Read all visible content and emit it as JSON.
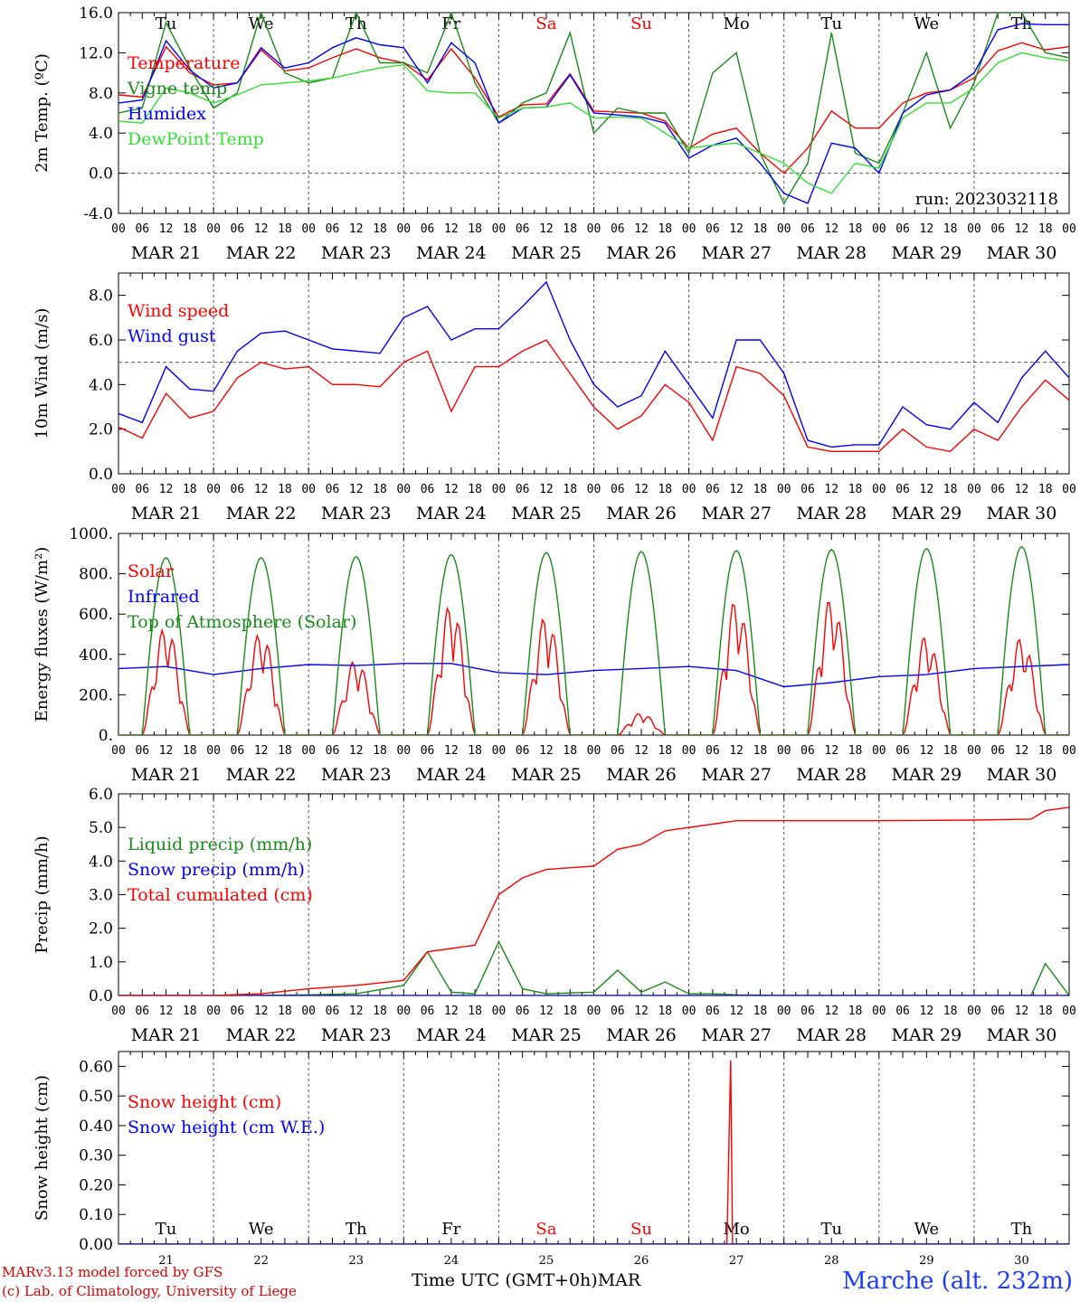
{
  "colors": {
    "red": "#ff0000",
    "green": "#1a8a1a",
    "blue": "#0000ff",
    "lightgreen": "#33dd33",
    "weekend": "#ff0000",
    "axis": "#000000"
  },
  "hour_ticks": [
    "00",
    "06",
    "12",
    "18"
  ],
  "date_labels": [
    "MAR 21",
    "MAR 22",
    "MAR 23",
    "MAR 24",
    "MAR 25",
    "MAR 26",
    "MAR 27",
    "MAR 28",
    "MAR 29",
    "MAR 30"
  ],
  "day_names": [
    "Tu",
    "We",
    "Th",
    "Fr",
    "Sa",
    "Su",
    "Mo",
    "Tu",
    "We",
    "Th"
  ],
  "weekend_days": [
    "Sa",
    "Su"
  ],
  "day_numbers": [
    "21",
    "22",
    "23",
    "24",
    "25",
    "26",
    "27",
    "28",
    "29",
    "30"
  ],
  "footer": {
    "credit_line1": "MARv3.13 model forced by GFS",
    "credit_line2": "(c) Lab. of Climatology, University of Liege",
    "time_label": "Time UTC (GMT+0h)",
    "month_label": "MAR",
    "station": "Marche (alt. 232m)"
  },
  "chart_data": [
    {
      "type": "line",
      "ylabel": "2m Temp. (ºC)",
      "ylim": [
        -4,
        16
      ],
      "yticks": [
        "-4.0",
        "0.0",
        "4.0",
        "8.0",
        "12.0",
        "16.0"
      ],
      "ytick_values": [
        -4,
        0,
        4,
        8,
        12,
        16
      ],
      "reference_line": 0,
      "show_day_names": true,
      "annotation": "run: 2023032118",
      "x_days": [
        0,
        0.25,
        0.5,
        0.75,
        1,
        1.25,
        1.5,
        1.75,
        2,
        2.25,
        2.5,
        2.75,
        3,
        3.25,
        3.5,
        3.75,
        4,
        4.25,
        4.5,
        4.75,
        5,
        5.25,
        5.5,
        5.75,
        6,
        6.25,
        6.5,
        6.75,
        7,
        7.25,
        7.5,
        7.75,
        8,
        8.25,
        8.5,
        8.75,
        9,
        9.25,
        9.5,
        9.75,
        10
      ],
      "series": [
        {
          "name": "Temperature",
          "color": "red",
          "values": [
            7.8,
            7.6,
            12.6,
            10.0,
            8.8,
            9.0,
            12.3,
            10.2,
            10.5,
            11.5,
            12.4,
            11.5,
            11.0,
            9.3,
            12.4,
            9.5,
            5.6,
            6.8,
            6.9,
            9.9,
            6.2,
            6.1,
            6.0,
            5.2,
            2.5,
            3.9,
            4.5,
            2.0,
            0.0,
            2.5,
            6.2,
            4.5,
            4.5,
            7.0,
            8.0,
            8.3,
            9.5,
            12.2,
            13.0,
            12.3,
            12.6
          ]
        },
        {
          "name": "Vigne temp",
          "color": "green",
          "values": [
            6.0,
            6.5,
            15.0,
            10.5,
            6.5,
            8.0,
            16.0,
            10.0,
            9.0,
            9.5,
            16.0,
            11.0,
            11.0,
            10.0,
            16.0,
            9.0,
            5.0,
            7.0,
            8.0,
            14.0,
            4.0,
            6.5,
            6.0,
            6.0,
            2.0,
            10.0,
            12.0,
            2.0,
            -3.0,
            1.0,
            14.0,
            2.0,
            1.0,
            6.0,
            12.0,
            4.5,
            9.0,
            16.0,
            16.0,
            12.0,
            11.5
          ]
        },
        {
          "name": "Humidex",
          "color": "blue",
          "values": [
            7.0,
            7.3,
            13.2,
            10.3,
            8.5,
            9.0,
            12.5,
            10.5,
            11.0,
            12.5,
            13.5,
            12.8,
            12.5,
            9.0,
            13.0,
            11.0,
            5.0,
            6.5,
            6.6,
            9.8,
            6.0,
            5.8,
            5.6,
            5.0,
            1.5,
            2.8,
            3.5,
            1.0,
            -2.0,
            -3.0,
            3.0,
            2.5,
            0.0,
            6.0,
            7.8,
            8.3,
            10.0,
            14.3,
            14.9,
            14.8,
            14.8
          ]
        },
        {
          "name": "DewPoint Temp",
          "color": "lightgreen",
          "values": [
            5.2,
            5.0,
            8.5,
            8.0,
            7.0,
            7.8,
            8.8,
            9.0,
            9.2,
            9.5,
            10.0,
            10.5,
            10.8,
            8.2,
            8.0,
            8.0,
            5.5,
            6.5,
            6.6,
            7.0,
            5.5,
            5.6,
            5.5,
            4.0,
            2.5,
            2.8,
            3.0,
            2.0,
            1.0,
            -1.0,
            -2.0,
            1.0,
            0.5,
            5.5,
            7.0,
            7.0,
            8.5,
            11.0,
            12.0,
            11.5,
            11.2
          ]
        }
      ]
    },
    {
      "type": "line",
      "ylabel": "10m Wind (m/s)",
      "ylim": [
        0,
        9
      ],
      "yticks": [
        "0.0",
        "2.0",
        "4.0",
        "6.0",
        "8.0"
      ],
      "ytick_values": [
        0,
        2,
        4,
        6,
        8
      ],
      "reference_line": 5,
      "x_days": [
        0,
        0.25,
        0.5,
        0.75,
        1,
        1.25,
        1.5,
        1.75,
        2,
        2.25,
        2.5,
        2.75,
        3,
        3.25,
        3.5,
        3.75,
        4,
        4.25,
        4.5,
        4.75,
        5,
        5.25,
        5.5,
        5.75,
        6,
        6.25,
        6.5,
        6.75,
        7,
        7.25,
        7.5,
        7.75,
        8,
        8.25,
        8.5,
        8.75,
        9,
        9.25,
        9.5,
        9.75,
        10
      ],
      "series": [
        {
          "name": "Wind speed",
          "color": "red",
          "values": [
            2.1,
            1.6,
            3.6,
            2.5,
            2.8,
            4.3,
            5.0,
            4.7,
            4.8,
            4.0,
            4.0,
            3.9,
            5.0,
            5.5,
            2.8,
            4.8,
            4.8,
            5.5,
            6.0,
            4.5,
            3.0,
            2.0,
            2.6,
            4.0,
            3.2,
            1.5,
            4.8,
            4.5,
            3.5,
            1.2,
            1.0,
            1.0,
            1.0,
            2.0,
            1.2,
            1.0,
            2.0,
            1.5,
            3.0,
            4.2,
            3.3
          ]
        },
        {
          "name": "Wind gust",
          "color": "blue",
          "values": [
            2.7,
            2.3,
            4.8,
            3.8,
            3.7,
            5.5,
            6.3,
            6.4,
            6.0,
            5.6,
            5.5,
            5.4,
            7.0,
            7.5,
            6.0,
            6.5,
            6.5,
            7.5,
            8.6,
            6.0,
            4.0,
            3.0,
            3.5,
            5.5,
            4.0,
            2.5,
            6.0,
            6.0,
            4.5,
            1.5,
            1.2,
            1.3,
            1.3,
            3.0,
            2.2,
            2.0,
            3.2,
            2.3,
            4.3,
            5.5,
            4.3
          ]
        }
      ]
    },
    {
      "type": "line",
      "ylabel": "Energy fluxes (W/m²)",
      "ylim": [
        0,
        1000
      ],
      "yticks": [
        "0.",
        "200.",
        "400.",
        "600.",
        "800.",
        "1000."
      ],
      "ytick_values": [
        0,
        200,
        400,
        600,
        800,
        1000
      ],
      "solar_peaks": [
        550,
        520,
        380,
        660,
        600,
        110,
        680,
        690,
        500,
        490
      ],
      "toa_peaks": [
        880,
        880,
        885,
        895,
        905,
        910,
        915,
        920,
        925,
        935
      ],
      "x_days": [
        0,
        0.5,
        1,
        1.5,
        2,
        2.5,
        3,
        3.5,
        4,
        4.5,
        5,
        5.5,
        6,
        6.5,
        7,
        7.5,
        8,
        8.5,
        9,
        9.5,
        10
      ],
      "series": [
        {
          "name": "Solar",
          "color": "red",
          "values": []
        },
        {
          "name": "Infrared",
          "color": "blue",
          "values": [
            330,
            340,
            300,
            330,
            350,
            345,
            355,
            355,
            310,
            300,
            320,
            330,
            340,
            320,
            240,
            260,
            290,
            300,
            330,
            340,
            350
          ]
        },
        {
          "name": "Top of Atmosphere (Solar)",
          "color": "green",
          "values": []
        }
      ]
    },
    {
      "type": "line",
      "ylabel": "Precip (mm/h)",
      "ylim": [
        0,
        6
      ],
      "yticks": [
        "0.0",
        "1.0",
        "2.0",
        "3.0",
        "4.0",
        "5.0",
        "6.0"
      ],
      "ytick_values": [
        0,
        1,
        2,
        3,
        4,
        5,
        6
      ],
      "x_days": [
        0,
        1,
        1.5,
        2,
        2.5,
        3,
        3.25,
        3.5,
        3.75,
        4,
        4.25,
        4.5,
        5,
        5.25,
        5.5,
        5.75,
        6,
        6.25,
        6.5,
        7,
        8,
        9,
        9.6,
        9.75,
        10
      ],
      "series": [
        {
          "name": "Liquid precip (mm/h)",
          "color": "green",
          "values": [
            0,
            0,
            0,
            0.02,
            0.05,
            0.3,
            1.3,
            0.1,
            0.05,
            1.6,
            0.2,
            0.05,
            0.1,
            0.75,
            0.1,
            0.4,
            0.05,
            0.05,
            0.02,
            0,
            0,
            0,
            0,
            0.95,
            0
          ]
        },
        {
          "name": "Snow precip (mm/h)",
          "color": "blue",
          "values": [
            0,
            0,
            0,
            0,
            0,
            0,
            0,
            0,
            0,
            0,
            0,
            0,
            0,
            0,
            0,
            0,
            0,
            0,
            0,
            0,
            0,
            0,
            0,
            0,
            0
          ]
        },
        {
          "name": "Total cumulated (cm)",
          "color": "red",
          "values": [
            0,
            0,
            0.05,
            0.2,
            0.3,
            0.45,
            1.3,
            1.4,
            1.5,
            3.0,
            3.5,
            3.75,
            3.85,
            4.35,
            4.5,
            4.9,
            5.0,
            5.1,
            5.2,
            5.2,
            5.2,
            5.22,
            5.25,
            5.5,
            5.6
          ]
        }
      ]
    },
    {
      "type": "line",
      "ylabel": "Snow height (cm)",
      "ylim": [
        0,
        0.65
      ],
      "yticks": [
        "0.00",
        "0.10",
        "0.20",
        "0.30",
        "0.40",
        "0.50",
        "0.60"
      ],
      "ytick_values": [
        0,
        0.1,
        0.2,
        0.3,
        0.4,
        0.5,
        0.6
      ],
      "show_day_names": true,
      "x_days": [
        0,
        6.4,
        6.44,
        6.46,
        6.5,
        10
      ],
      "series": [
        {
          "name": "Snow height (cm)",
          "color": "red",
          "values": [
            0,
            0,
            0.62,
            0,
            0,
            0
          ]
        },
        {
          "name": "Snow height (cm W.E.)",
          "color": "blue",
          "values": [
            0,
            0,
            0,
            0,
            0,
            0
          ]
        }
      ]
    }
  ]
}
